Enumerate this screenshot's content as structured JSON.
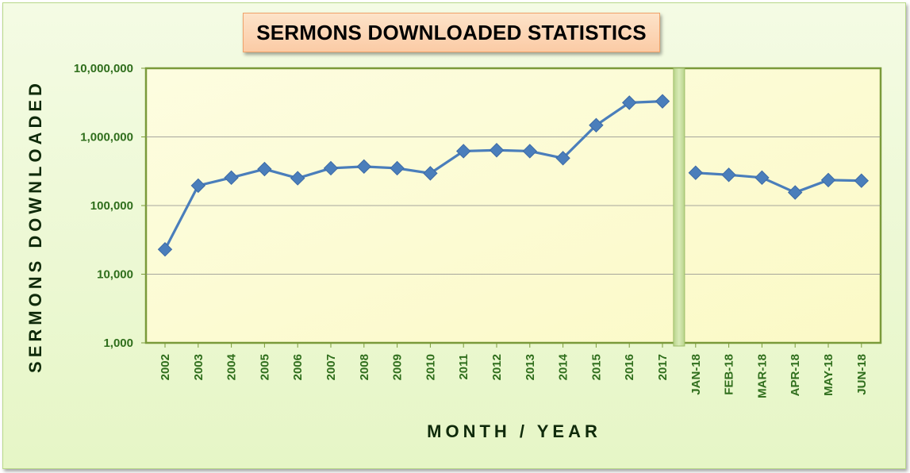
{
  "chart_data": {
    "type": "line",
    "title": "SERMONS DOWNLOADED STATISTICS",
    "xlabel": "MONTH / YEAR",
    "ylabel": "SERMONS DOWNLOADED",
    "y_scale": "log",
    "ylim": [
      1000,
      10000000
    ],
    "y_ticks": [
      1000,
      10000,
      100000,
      1000000,
      10000000
    ],
    "y_tick_labels": [
      "1,000",
      "10,000",
      "100,000",
      "1,000,000",
      "10,000,000"
    ],
    "grid": true,
    "legend": "none",
    "categories": [
      "2002",
      "2003",
      "2004",
      "2005",
      "2006",
      "2007",
      "2008",
      "2009",
      "2010",
      "2011",
      "2012",
      "2013",
      "2014",
      "2015",
      "2016",
      "2017",
      "JAN-18",
      "FEB-18",
      "MAR-18",
      "APR-18",
      "MAY-18",
      "JUN-18"
    ],
    "series": [
      {
        "values": [
          23000,
          195000,
          255000,
          340000,
          250000,
          350000,
          370000,
          350000,
          295000,
          620000,
          640000,
          620000,
          490000,
          1480000,
          3150000,
          3300000,
          300000,
          280000,
          255000,
          155000,
          235000,
          230000
        ]
      }
    ],
    "divider_after_index": 15,
    "colors": {
      "line": "#4a7ebb",
      "marker": "#4a7ebb",
      "plot_background": "#fdfde0",
      "plot_border": "#7a9a3a",
      "divider": "#c4dc99",
      "tick_text": "#2f6e1c",
      "axis_title": "#0f2a0a",
      "title_box": "#fbcba5"
    }
  }
}
